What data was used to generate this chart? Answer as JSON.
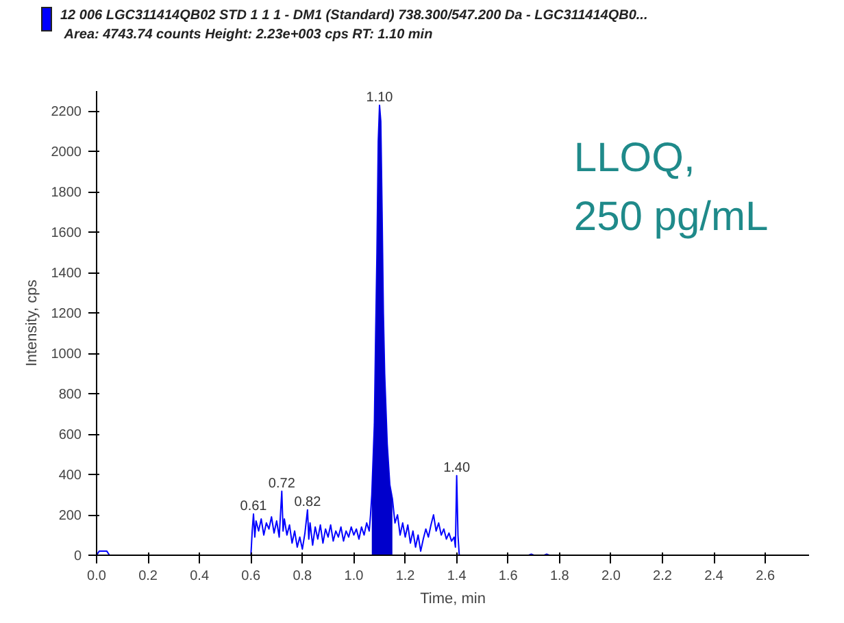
{
  "chart_data": {
    "type": "line",
    "title": "12 006 LGC311414QB02 STD 1 1 1 - DM1 (Standard) 738.300/547.200 Da - LGC311414QB0...",
    "subtitle": "Area: 4743.74 counts  Height: 2.23e+003 cps  RT: 1.10 min",
    "xlabel": "Time, min",
    "ylabel": "Intensity, cps",
    "xlim": [
      0,
      2.77
    ],
    "ylim": [
      0,
      2300
    ],
    "xticks": [
      {
        "value": 0,
        "label": "0.0"
      },
      {
        "value": 0.2,
        "label": "0.2"
      },
      {
        "value": 0.4,
        "label": "0.4"
      },
      {
        "value": 0.6,
        "label": "0.6"
      },
      {
        "value": 0.8,
        "label": "0.8"
      },
      {
        "value": 1,
        "label": "1.0"
      },
      {
        "value": 1.2,
        "label": "1.2"
      },
      {
        "value": 1.4,
        "label": "1.4"
      },
      {
        "value": 1.6,
        "label": "1.6"
      },
      {
        "value": 1.8,
        "label": "1.8"
      },
      {
        "value": 2,
        "label": "2.0"
      },
      {
        "value": 2.2,
        "label": "2.2"
      },
      {
        "value": 2.4,
        "label": "2.4"
      },
      {
        "value": 2.6,
        "label": "2.6"
      }
    ],
    "yticks": [
      0,
      200,
      400,
      600,
      800,
      1000,
      1200,
      1400,
      1600,
      1800,
      2000,
      2200
    ],
    "grid": false,
    "marker": "none",
    "line_style": "solid",
    "series": [
      {
        "color": "#0000ff",
        "x": [
          0,
          0.01,
          0.02,
          0.04,
          0.05,
          0.59,
          0.6,
          0.605,
          0.61,
          0.615,
          0.62,
          0.63,
          0.64,
          0.65,
          0.66,
          0.67,
          0.68,
          0.69,
          0.7,
          0.71,
          0.72,
          0.725,
          0.73,
          0.74,
          0.75,
          0.76,
          0.77,
          0.78,
          0.79,
          0.8,
          0.81,
          0.82,
          0.825,
          0.83,
          0.84,
          0.85,
          0.86,
          0.87,
          0.88,
          0.89,
          0.9,
          0.91,
          0.92,
          0.93,
          0.94,
          0.95,
          0.96,
          0.97,
          0.98,
          0.99,
          1.0,
          1.01,
          1.02,
          1.03,
          1.04,
          1.05,
          1.06,
          1.065,
          1.07,
          1.08,
          1.085,
          1.09,
          1.095,
          1.1,
          1.105,
          1.11,
          1.115,
          1.12,
          1.13,
          1.14,
          1.15,
          1.16,
          1.17,
          1.18,
          1.19,
          1.2,
          1.21,
          1.22,
          1.23,
          1.24,
          1.25,
          1.26,
          1.27,
          1.28,
          1.29,
          1.3,
          1.31,
          1.32,
          1.33,
          1.34,
          1.35,
          1.36,
          1.37,
          1.38,
          1.39,
          1.395,
          1.4,
          1.405,
          1.41,
          1.68,
          1.69,
          1.7,
          1.74,
          1.75,
          1.76,
          2.77
        ],
        "values": [
          0,
          20,
          20,
          20,
          0,
          0,
          0,
          120,
          204,
          90,
          170,
          120,
          180,
          100,
          160,
          130,
          190,
          110,
          170,
          90,
          317,
          120,
          180,
          100,
          150,
          60,
          120,
          40,
          90,
          30,
          110,
          225,
          80,
          160,
          50,
          140,
          80,
          150,
          60,
          130,
          90,
          150,
          70,
          120,
          90,
          140,
          70,
          120,
          90,
          140,
          100,
          130,
          80,
          140,
          100,
          160,
          120,
          200,
          300,
          650,
          1100,
          1500,
          2050,
          2230,
          2150,
          1700,
          1200,
          900,
          550,
          350,
          280,
          160,
          200,
          100,
          160,
          90,
          150,
          60,
          120,
          40,
          100,
          20,
          80,
          130,
          90,
          150,
          200,
          120,
          160,
          100,
          130,
          80,
          110,
          70,
          90,
          40,
          394,
          100,
          0,
          0,
          5,
          0,
          0,
          5,
          0,
          0
        ]
      },
      {
        "type": "area",
        "color": "#0000cc",
        "x": [
          1.07,
          1.08,
          1.085,
          1.09,
          1.095,
          1.1,
          1.105,
          1.11,
          1.115,
          1.12,
          1.13,
          1.14,
          1.15
        ],
        "values": [
          300,
          650,
          1100,
          1500,
          2050,
          2230,
          2150,
          1700,
          1200,
          900,
          550,
          350,
          280
        ]
      }
    ],
    "annotations": [
      {
        "text": "0.61",
        "x": 0.61,
        "y": 204
      },
      {
        "text": "0.72",
        "x": 0.72,
        "y": 317
      },
      {
        "text": "0.82",
        "x": 0.82,
        "y": 225
      },
      {
        "text": "1.10",
        "x": 1.1,
        "y": 2230
      },
      {
        "text": "1.40",
        "x": 1.4,
        "y": 394
      },
      "LLOQ,\n250 pg/mL"
    ]
  }
}
